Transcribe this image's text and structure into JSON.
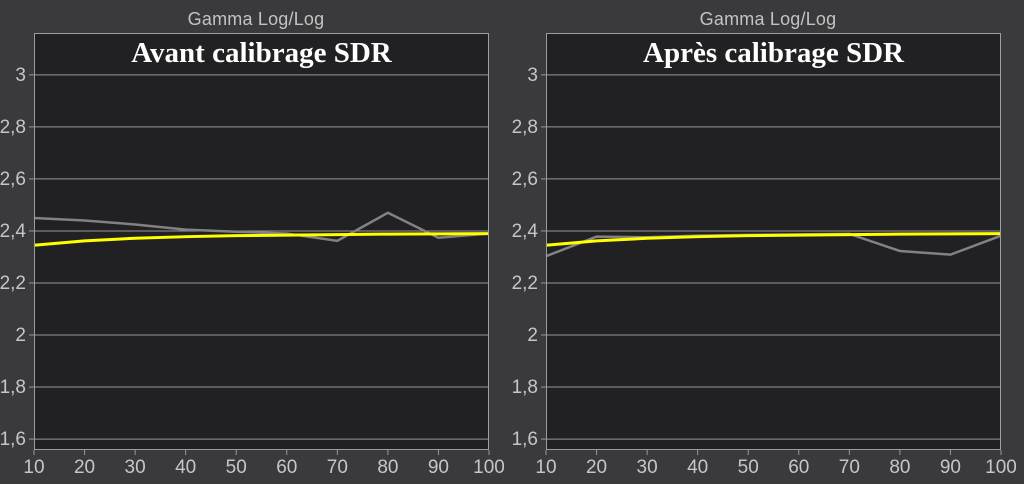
{
  "style": {
    "page_background": "#3a3a3c",
    "plot_background": "#212123",
    "grid_color": "#989898",
    "border_color": "#9d9d9d",
    "tick_label_color": "#c6c6c6",
    "header_color": "#c3c3c3",
    "title_color": "#ffffff",
    "reference_color": "#ffff00",
    "measured_color": "#828284"
  },
  "chart_data": [
    {
      "id": "before-calibration",
      "type": "line",
      "header": "Gamma Log/Log",
      "title": "Avant calibrage SDR",
      "xlim": [
        10,
        100
      ],
      "ylim": [
        1.558,
        3.161
      ],
      "x_ticks": [
        10,
        20,
        30,
        40,
        50,
        60,
        70,
        80,
        90,
        100
      ],
      "x_tick_labels": [
        "10",
        "20",
        "30",
        "40",
        "50",
        "60",
        "70",
        "80",
        "90",
        "100"
      ],
      "y_ticks": [
        3,
        2.8,
        2.6,
        2.4,
        2.2,
        2,
        1.8,
        1.6
      ],
      "y_tick_labels": [
        "3",
        "2,8",
        "2,6",
        "2,4",
        "2,2",
        "2",
        "1,8",
        "1,6"
      ],
      "grid": "horizontal",
      "legend": "none",
      "series": [
        {
          "name": "measured-gamma",
          "color": "#828284",
          "width": 2.5,
          "values": [
            2.45,
            2.44,
            2.425,
            2.405,
            2.397,
            2.39,
            2.362,
            2.47,
            2.374,
            2.39
          ]
        },
        {
          "name": "reference-gamma",
          "color": "#ffff00",
          "width": 3,
          "values": [
            2.345,
            2.362,
            2.372,
            2.378,
            2.382,
            2.384,
            2.386,
            2.388,
            2.389,
            2.39
          ]
        }
      ]
    },
    {
      "id": "after-calibration",
      "type": "line",
      "header": "Gamma Log/Log",
      "title": "Après calibrage SDR",
      "xlim": [
        10,
        100
      ],
      "ylim": [
        1.558,
        3.161
      ],
      "x_ticks": [
        10,
        20,
        30,
        40,
        50,
        60,
        70,
        80,
        90,
        100
      ],
      "x_tick_labels": [
        "10",
        "20",
        "30",
        "40",
        "50",
        "60",
        "70",
        "80",
        "90",
        "100"
      ],
      "y_ticks": [
        3,
        2.8,
        2.6,
        2.4,
        2.2,
        2,
        1.8,
        1.6
      ],
      "y_tick_labels": [
        "3",
        "2,8",
        "2,6",
        "2,4",
        "2,2",
        "2",
        "1,8",
        "1,6"
      ],
      "grid": "horizontal",
      "legend": "none",
      "series": [
        {
          "name": "measured-gamma",
          "color": "#828284",
          "width": 2.5,
          "values": [
            2.303,
            2.378,
            2.376,
            2.382,
            2.385,
            2.387,
            2.389,
            2.323,
            2.309,
            2.382
          ]
        },
        {
          "name": "reference-gamma",
          "color": "#ffff00",
          "width": 3,
          "values": [
            2.345,
            2.362,
            2.372,
            2.378,
            2.382,
            2.384,
            2.386,
            2.388,
            2.389,
            2.39
          ]
        }
      ]
    }
  ]
}
